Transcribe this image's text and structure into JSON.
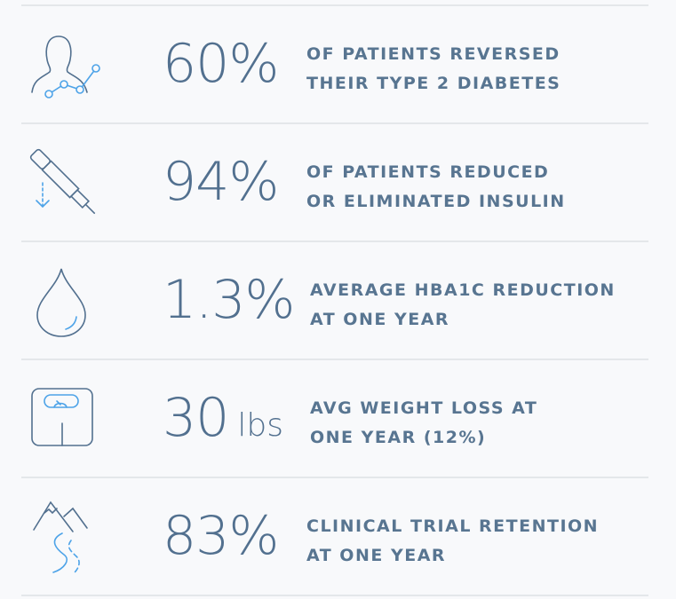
{
  "colors": {
    "text": "#52708f",
    "accent": "#4da3e8",
    "divider": "#e4e7ea",
    "background": "#f8f9fb"
  },
  "stats": [
    {
      "icon": "person-chart-icon",
      "value": "60%",
      "unit": "",
      "lines": [
        "OF PATIENTS REVERSED",
        "THEIR TYPE 2 DIABETES"
      ]
    },
    {
      "icon": "insulin-pen-icon",
      "value": "94%",
      "unit": "",
      "lines": [
        "OF PATIENTS REDUCED",
        "OR ELIMINATED INSULIN"
      ]
    },
    {
      "icon": "drop-icon",
      "value": "1.3%",
      "unit": "",
      "lines": [
        "AVERAGE HBA1C REDUCTION",
        "AT ONE YEAR"
      ]
    },
    {
      "icon": "scale-icon",
      "value": "30",
      "unit": "lbs",
      "lines": [
        "AVG WEIGHT LOSS AT",
        "ONE YEAR (12%)"
      ]
    },
    {
      "icon": "mountain-road-icon",
      "value": "83%",
      "unit": "",
      "lines": [
        "CLINICAL TRIAL RETENTION",
        "AT ONE YEAR"
      ]
    }
  ]
}
